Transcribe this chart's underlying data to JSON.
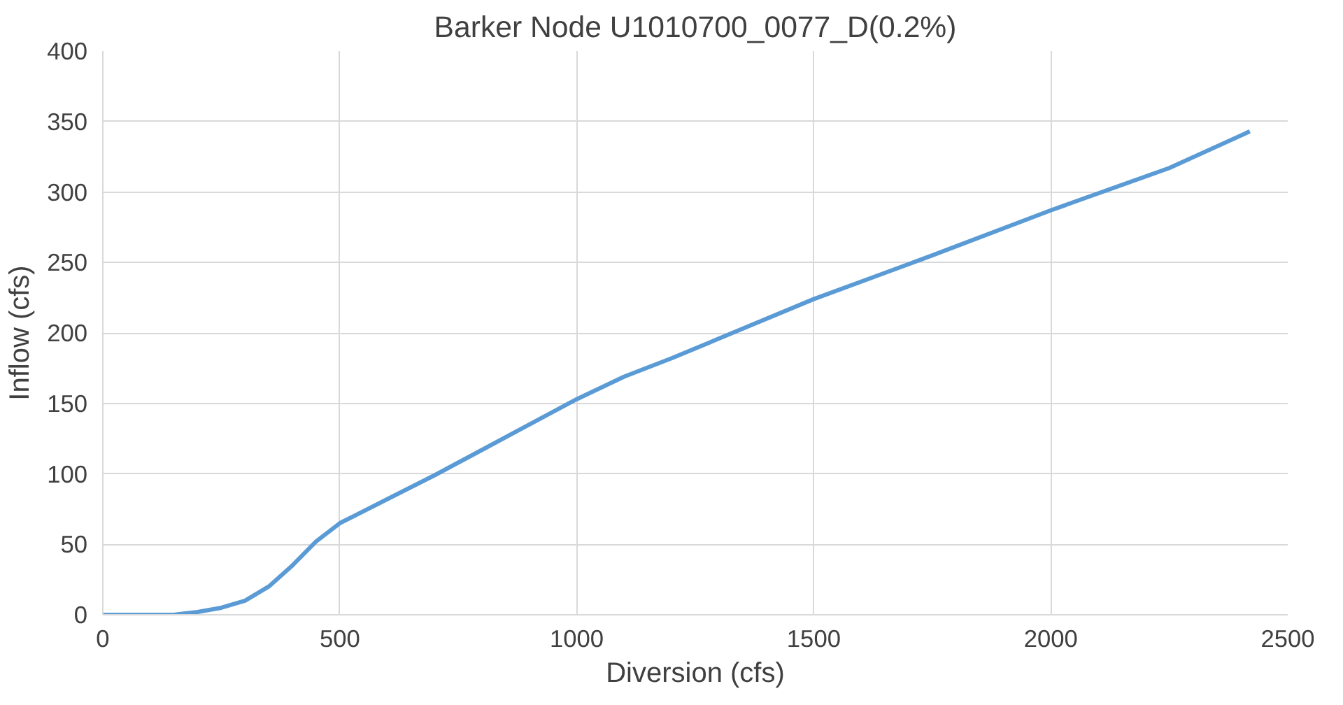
{
  "chart_data": {
    "type": "line",
    "title": "Barker Node U1010700_0077_D(0.2%)",
    "xlabel": "Diversion (cfs)",
    "ylabel": "Inflow (cfs)",
    "x": [
      0,
      50,
      100,
      150,
      200,
      250,
      300,
      350,
      400,
      450,
      500,
      600,
      700,
      800,
      900,
      1000,
      1100,
      1200,
      1300,
      1500,
      1750,
      2000,
      2250,
      2420
    ],
    "series": [
      {
        "color": "#5b9bd5",
        "values": [
          0,
          0,
          0,
          0,
          2,
          5,
          10,
          20,
          35,
          52,
          65,
          82,
          99,
          117,
          135,
          153,
          169,
          182,
          196,
          224,
          255,
          287,
          317,
          343
        ]
      }
    ],
    "xlim": [
      0,
      2500
    ],
    "xticks": [
      0,
      500,
      1000,
      1500,
      2000,
      2500
    ],
    "ylim": [
      0,
      400
    ],
    "yticks": [
      0,
      50,
      100,
      150,
      200,
      250,
      300,
      350,
      400
    ],
    "grid": true,
    "marker": "none",
    "line_style": "solid"
  }
}
